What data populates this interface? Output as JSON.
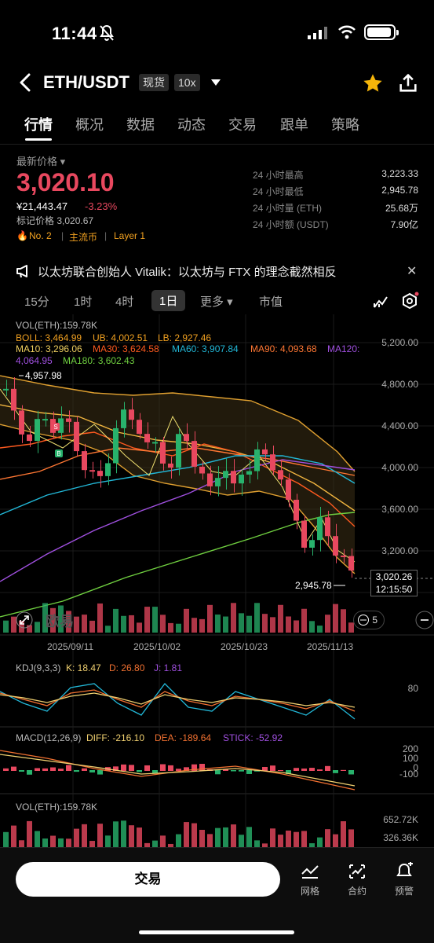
{
  "status": {
    "time": "11:44"
  },
  "header": {
    "pair": "ETH/USDT",
    "tag_spot": "现货",
    "tag_lev": "10x"
  },
  "tabs": [
    "行情",
    "概况",
    "数据",
    "动态",
    "交易",
    "跟单",
    "策略"
  ],
  "price": {
    "latest_label": "最新价格 ▾",
    "last": "3,020.10",
    "cny": "¥21,443.47",
    "change": "-3.23%",
    "mark": "标记价格 3,020.67",
    "rank": "No. 2",
    "tag1": "主流币",
    "tag2": "Layer 1",
    "stats": [
      {
        "label": "24 小时最高",
        "value": "3,223.33"
      },
      {
        "label": "24 小时最低",
        "value": "2,945.78"
      },
      {
        "label": "24 小时量 (ETH)",
        "value": "25.68万"
      },
      {
        "label": "24 小时额 (USDT)",
        "value": "7.90亿"
      }
    ]
  },
  "announcement": "以太坊联合创始人 Vitalik：以太坊与 FTX 的理念截然相反",
  "timeframes": [
    "15分",
    "1时",
    "4时",
    "1日",
    "更多 ▾",
    "市值"
  ],
  "chart": {
    "vol_label": "VOL(ETH):159.78K",
    "boll": "BOLL: 3,464.99",
    "ub": "UB: 4,002.51",
    "lb": "LB: 2,927.46",
    "ma10": "MA10: 3,296.06",
    "ma30": "MA30: 3,624.58",
    "ma60": "MA60: 3,907.84",
    "ma90": "MA90: 4,093.68",
    "ma120": "MA120:",
    "ma120v": "4,064.95",
    "ma180": "MA180: 3,602.43",
    "y_ticks": [
      "5,200.00",
      "4,800.00",
      "4,400.00",
      "4,000.00",
      "3,600.00",
      "3,200.00"
    ],
    "high_marker": "4,957.98",
    "low_marker": "2,945.78",
    "last_box": "3,020.26",
    "countdown": "12:15:50",
    "dates": [
      "2025/09/11",
      "2025/10/02",
      "2025/10/23",
      "2025/11/13"
    ],
    "watermark": "欧易",
    "badge": "5",
    "kdj": {
      "label": "KDJ(9,3,3)",
      "k": "K: 18.47",
      "d": "D: 26.80",
      "j": "J: 1.81",
      "tick": "80"
    },
    "macd": {
      "label": "MACD(12,26,9)",
      "diff": "DIFF: -216.10",
      "dea": "DEA: -189.64",
      "stick": "STICK: -52.92",
      "ticks": [
        "200",
        "100",
        "0",
        "-100"
      ]
    },
    "vol2": {
      "label": "VOL(ETH):159.78K",
      "ticks": [
        "652.72K",
        "326.36K"
      ]
    }
  },
  "bottom": {
    "trade": "交易",
    "grid": "网格",
    "contract": "合约",
    "alert": "预警"
  }
}
